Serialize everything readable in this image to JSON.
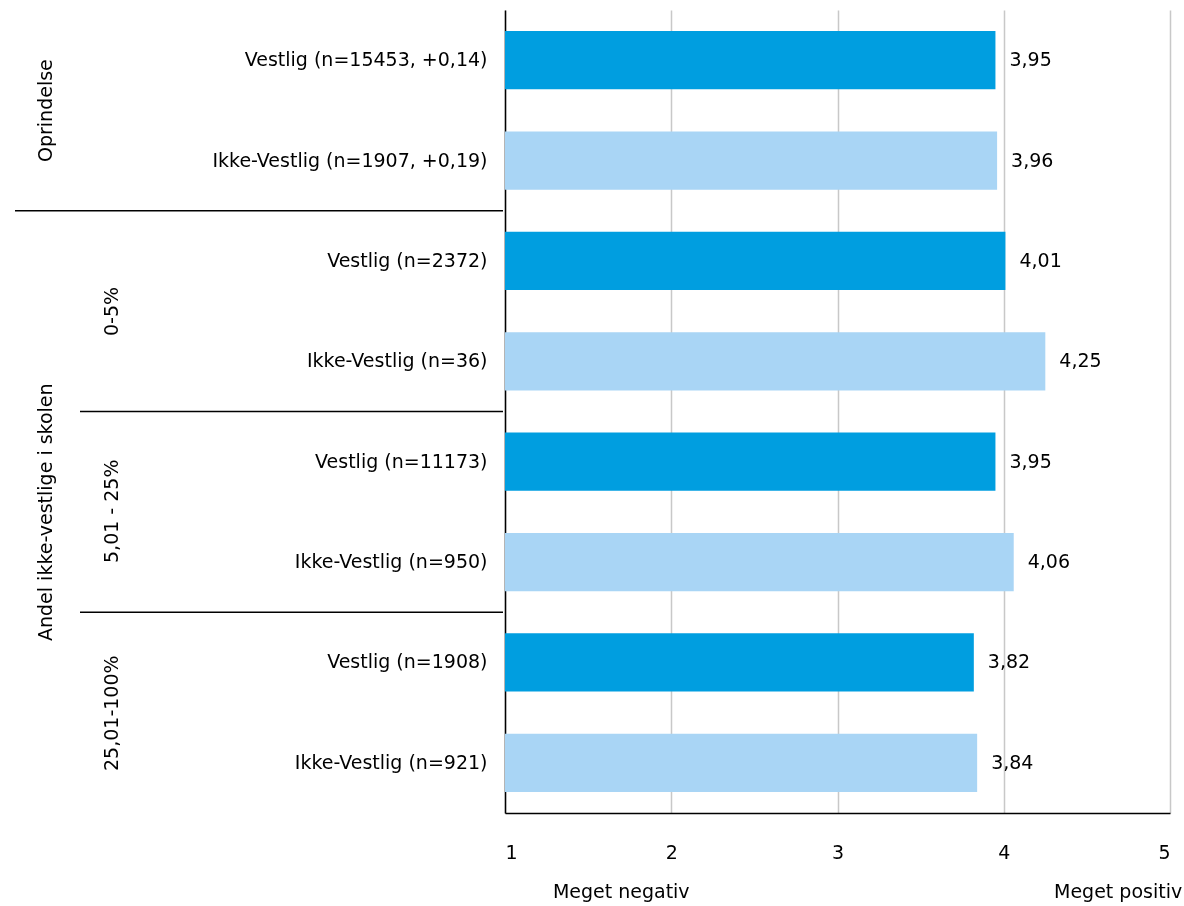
{
  "chart_data": {
    "type": "bar",
    "orientation": "horizontal",
    "categories": [
      "Vestlig (n=15453, +0,14)",
      "Ikke-Vestlig (n=1907, +0,19)",
      "Vestlig (n=2372)",
      "Ikke-Vestlig (n=36)",
      "Vestlig (n=11173)",
      "Ikke-Vestlig (n=950)",
      "Vestlig (n=1908)",
      "Ikke-Vestlig (n=921)"
    ],
    "values": [
      3.95,
      3.96,
      4.01,
      4.25,
      3.95,
      4.06,
      3.82,
      3.84
    ],
    "value_labels": [
      "3,95",
      "3,96",
      "4,01",
      "4,25",
      "3,95",
      "4,06",
      "3,82",
      "3,84"
    ],
    "colors": [
      "#009ee0",
      "#a9d5f5",
      "#009ee0",
      "#a9d5f5",
      "#009ee0",
      "#a9d5f5",
      "#009ee0",
      "#a9d5f5"
    ],
    "xlim": [
      1,
      5
    ],
    "xticks": [
      1,
      2,
      3,
      4,
      5
    ],
    "grid": "x",
    "annotations": [
      "Oprindelse",
      "Andel ikke-vestlige i skolen",
      "0-5%",
      "5,01 - 25%",
      "25,01-100%",
      "Meget negativ",
      "Meget positiv"
    ]
  }
}
